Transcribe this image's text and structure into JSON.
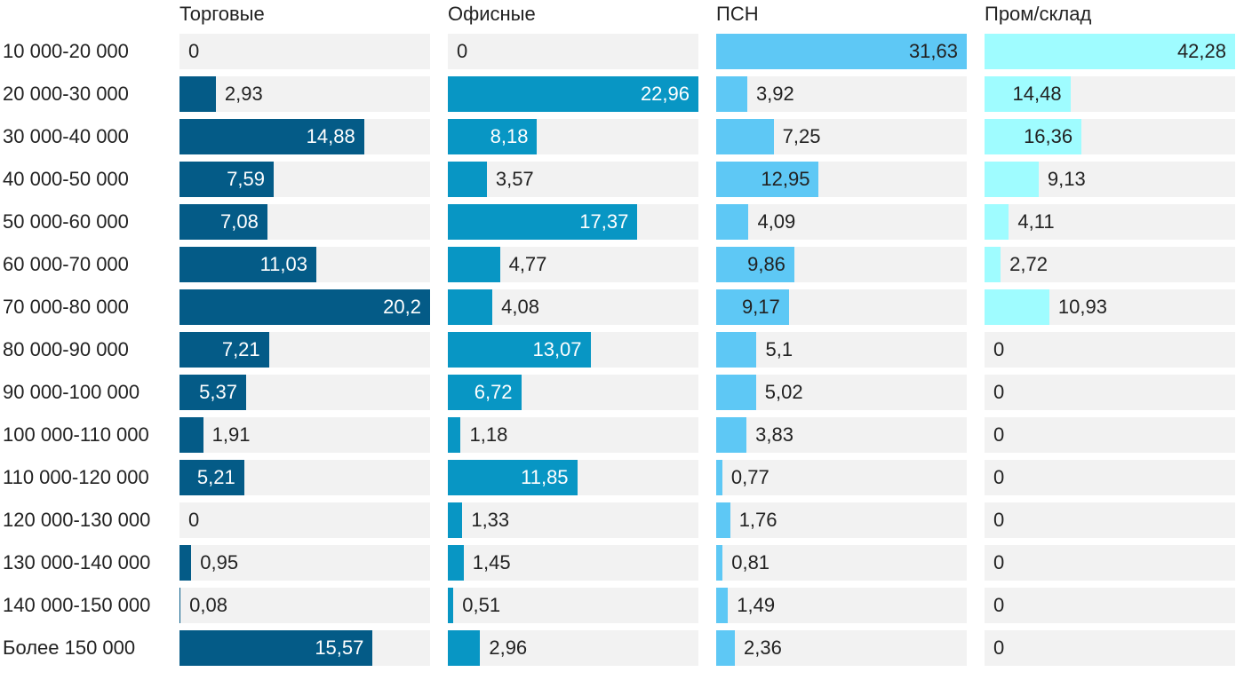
{
  "chart_data": {
    "type": "bar",
    "orientation": "horizontal",
    "layout": "small-multiples",
    "categories": [
      "10 000-20 000",
      "20 000-30 000",
      "30 000-40 000",
      "40 000-50 000",
      "50 000-60 000",
      "60 000-70 000",
      "70 000-80 000",
      "80 000-90 000",
      "90 000-100 000",
      "100 000-110 000",
      "110 000-120 000",
      "120 000-130 000",
      "130 000-140 000",
      "140 000-150 000",
      "Более 150 000"
    ],
    "series": [
      {
        "name": "Торговые",
        "color": "#045b87",
        "label_color": "#ffffff",
        "max": 20.2,
        "labels": [
          "0",
          "2,93",
          "14,88",
          "7,59",
          "7,08",
          "11,03",
          "20,2",
          "7,21",
          "5,37",
          "1,91",
          "5,21",
          "0",
          "0,95",
          "0,08",
          "15,57"
        ],
        "values": [
          0,
          2.93,
          14.88,
          7.59,
          7.08,
          11.03,
          20.2,
          7.21,
          5.37,
          1.91,
          5.21,
          0,
          0.95,
          0.08,
          15.57
        ]
      },
      {
        "name": "Офисные",
        "color": "#0896c4",
        "label_color": "#ffffff",
        "max": 22.96,
        "labels": [
          "0",
          "22,96",
          "8,18",
          "3,57",
          "17,37",
          "4,77",
          "4,08",
          "13,07",
          "6,72",
          "1,18",
          "11,85",
          "1,33",
          "1,45",
          "0,51",
          "2,96"
        ],
        "values": [
          0,
          22.96,
          8.18,
          3.57,
          17.37,
          4.77,
          4.08,
          13.07,
          6.72,
          1.18,
          11.85,
          1.33,
          1.45,
          0.51,
          2.96
        ]
      },
      {
        "name": "ПСН",
        "color": "#5ec8f5",
        "label_color": "#222222",
        "max": 31.63,
        "labels": [
          "31,63",
          "3,92",
          "7,25",
          "12,95",
          "4,09",
          "9,86",
          "9,17",
          "5,1",
          "5,02",
          "3,83",
          "0,77",
          "1,76",
          "0,81",
          "1,49",
          "2,36"
        ],
        "values": [
          31.63,
          3.92,
          7.25,
          12.95,
          4.09,
          9.86,
          9.17,
          5.1,
          5.02,
          3.83,
          0.77,
          1.76,
          0.81,
          1.49,
          2.36
        ]
      },
      {
        "name": "Пром/склад",
        "color": "#9ffcff",
        "label_color": "#222222",
        "max": 42.28,
        "labels": [
          "42,28",
          "14,48",
          "16,36",
          "9,13",
          "4,11",
          "2,72",
          "10,93",
          "0",
          "0",
          "0",
          "0",
          "0",
          "0",
          "0",
          "0"
        ],
        "values": [
          42.28,
          14.48,
          16.36,
          9.13,
          4.11,
          2.72,
          10.93,
          0,
          0,
          0,
          0,
          0,
          0,
          0,
          0
        ]
      }
    ],
    "xlabel": "",
    "ylabel": "",
    "title": "",
    "grid": false,
    "legend": "none"
  }
}
